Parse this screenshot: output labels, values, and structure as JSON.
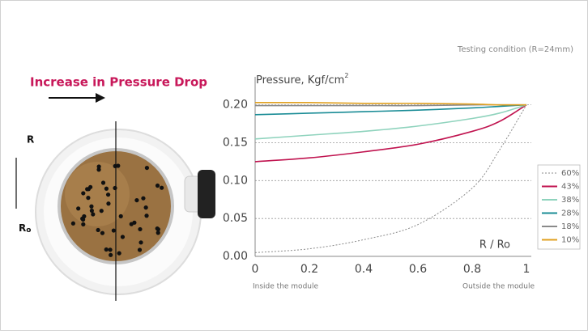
{
  "chart_data": {
    "type": "line",
    "title": "Increase in Pressure Drop",
    "subtitle": "Testing condition (R=24mm)",
    "y_label": "Pressure, Kgf/cm",
    "y_label_sup": "2",
    "x_label": "R / Ro",
    "x_note_left": "Inside the module",
    "x_note_right": "Outside the module",
    "illustration": {
      "label_top": "R",
      "label_bottom": "R",
      "label_bottom_sub": "o"
    },
    "x": [
      0,
      0.2,
      0.4,
      0.6,
      0.8,
      0.9,
      1
    ],
    "xlim": [
      0,
      1
    ],
    "xticks": [
      0,
      0.2,
      0.4,
      0.6,
      0.8,
      1
    ],
    "ylim": [
      0,
      0.237
    ],
    "yticks": [
      {
        "value": 0,
        "label": "0.00"
      },
      {
        "value": 0.05,
        "label": "0.05"
      },
      {
        "value": 0.1,
        "label": "0.10"
      },
      {
        "value": 0.15,
        "label": "0.15"
      },
      {
        "value": 0.2,
        "label": "0.20"
      }
    ],
    "grid": true,
    "legend": "right",
    "series": [
      {
        "name": "60%",
        "color": "#8a8a8a",
        "dash": true,
        "values": [
          0.005,
          0.01,
          0.022,
          0.042,
          0.09,
          0.14,
          0.2
        ]
      },
      {
        "name": "43%",
        "color": "#c0134f",
        "values": [
          0.125,
          0.13,
          0.138,
          0.148,
          0.165,
          0.178,
          0.2
        ]
      },
      {
        "name": "38%",
        "color": "#8fd3bd",
        "values": [
          0.155,
          0.16,
          0.165,
          0.172,
          0.182,
          0.189,
          0.2
        ]
      },
      {
        "name": "28%",
        "color": "#1a8c96",
        "values": [
          0.187,
          0.189,
          0.191,
          0.193,
          0.196,
          0.198,
          0.2
        ]
      },
      {
        "name": "18%",
        "color": "#8a8a8a",
        "values": [
          0.199,
          0.199,
          0.199,
          0.199,
          0.2,
          0.2,
          0.2
        ]
      },
      {
        "name": "10%",
        "color": "#e0a020",
        "values": [
          0.203,
          0.203,
          0.202,
          0.202,
          0.201,
          0.2,
          0.2
        ]
      }
    ]
  }
}
